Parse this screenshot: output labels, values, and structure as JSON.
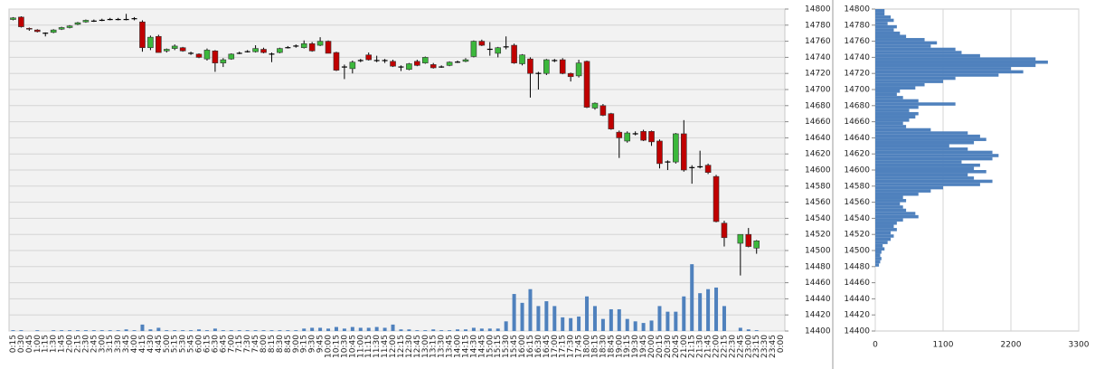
{
  "chart_data": [
    {
      "type": "candlestick",
      "categories": [
        "0:15",
        "0:30",
        "0:45",
        "1:00",
        "1:15",
        "1:30",
        "1:45",
        "2:00",
        "2:15",
        "2:30",
        "2:45",
        "3:00",
        "3:15",
        "3:30",
        "3:45",
        "4:00",
        "4:15",
        "4:30",
        "4:45",
        "5:00",
        "5:15",
        "5:30",
        "5:45",
        "6:00",
        "6:15",
        "6:30",
        "6:45",
        "7:00",
        "7:15",
        "7:30",
        "7:45",
        "8:00",
        "8:15",
        "8:30",
        "8:45",
        "9:00",
        "9:15",
        "9:30",
        "9:45",
        "10:00",
        "10:15",
        "10:30",
        "10:45",
        "11:00",
        "11:15",
        "11:30",
        "11:45",
        "12:00",
        "12:15",
        "12:30",
        "12:45",
        "13:00",
        "13:15",
        "13:30",
        "13:45",
        "14:00",
        "14:15",
        "14:30",
        "14:45",
        "15:00",
        "15:15",
        "15:30",
        "15:45",
        "16:00",
        "16:15",
        "16:30",
        "16:45",
        "17:00",
        "17:15",
        "17:30",
        "17:45",
        "18:00",
        "18:15",
        "18:30",
        "18:45",
        "19:00",
        "19:15",
        "19:30",
        "19:45",
        "20:00",
        "20:15",
        "20:30",
        "20:45",
        "21:00",
        "21:15",
        "21:30",
        "21:45",
        "22:00",
        "22:15",
        "22:30",
        "22:45",
        "23:00",
        "23:15",
        "23:30",
        "23:45",
        "0:00"
      ],
      "open": [
        14787,
        14790,
        14776,
        14774,
        14770,
        14771,
        14775,
        14777,
        14781,
        14784,
        14785,
        14786,
        14787,
        14787,
        14787,
        14788,
        14784,
        14752,
        14766,
        14748,
        14751,
        14752,
        14745,
        14744,
        14738,
        14748,
        14733,
        14738,
        14745,
        14747,
        14747,
        14750,
        14744,
        14746,
        14752,
        14754,
        14752,
        14757,
        14755,
        14760,
        14746,
        14728,
        14726,
        14736,
        14743,
        14736,
        14736,
        14735,
        14728,
        14725,
        14735,
        14733,
        14731,
        14728,
        14730,
        14734,
        14735,
        14741,
        14760,
        14750,
        14745,
        14753,
        14755,
        14732,
        14738,
        14720,
        14720,
        14736,
        14737,
        14720,
        14717,
        14735,
        14677,
        14680,
        14670,
        14647,
        14636,
        14645,
        14648,
        14648,
        14636,
        14610,
        14610,
        14645,
        14603,
        14604,
        14606,
        14592,
        14534,
        null,
        14509,
        14520,
        14503,
        null,
        null,
        null
      ],
      "high": [
        14790,
        14791,
        14777,
        14775,
        14771,
        14775,
        14778,
        14780,
        14784,
        14787,
        14787,
        14788,
        14789,
        14789,
        14794,
        14790,
        14786,
        14767,
        14768,
        14751,
        14756,
        14753,
        14747,
        14745,
        14751,
        14749,
        14739,
        14745,
        14747,
        14749,
        14755,
        14752,
        14746,
        14752,
        14754,
        14756,
        14761,
        14759,
        14765,
        14761,
        14747,
        14731,
        14736,
        14738,
        14746,
        14742,
        14738,
        14737,
        14730,
        14733,
        14737,
        14741,
        14733,
        14730,
        14735,
        14736,
        14739,
        14761,
        14762,
        14759,
        14753,
        14766,
        14757,
        14744,
        14740,
        14722,
        14738,
        14738,
        14739,
        14721,
        14737,
        14736,
        14684,
        14682,
        14671,
        14649,
        14648,
        14648,
        14650,
        14649,
        14638,
        14612,
        14646,
        14662,
        14606,
        14624,
        14608,
        14594,
        14537,
        null,
        14520,
        14528,
        14513,
        null,
        null,
        null
      ],
      "low": [
        14786,
        14777,
        14773,
        14771,
        14766,
        14770,
        14774,
        14776,
        14780,
        14783,
        14784,
        14785,
        14786,
        14786,
        14786,
        14786,
        14747,
        14749,
        14746,
        14746,
        14749,
        14747,
        14743,
        14739,
        14736,
        14722,
        14728,
        14737,
        14744,
        14746,
        14746,
        14745,
        14734,
        14745,
        14751,
        14752,
        14751,
        14747,
        14754,
        14745,
        14723,
        14713,
        14720,
        14734,
        14736,
        14734,
        14733,
        14728,
        14723,
        14724,
        14729,
        14732,
        14726,
        14727,
        14729,
        14733,
        14734,
        14740,
        14754,
        14742,
        14740,
        14750,
        14732,
        14730,
        14690,
        14700,
        14718,
        14734,
        14719,
        14710,
        14715,
        14677,
        14675,
        14667,
        14650,
        14615,
        14634,
        14643,
        14636,
        14630,
        14602,
        14600,
        14608,
        14598,
        14583,
        14602,
        14595,
        14535,
        14505,
        null,
        14469,
        14504,
        14496,
        null,
        null,
        null
      ],
      "close": [
        14789,
        14778,
        14775,
        14772,
        14770,
        14774,
        14777,
        14779,
        14783,
        14786,
        14785,
        14786,
        14787,
        14787,
        14787,
        14788,
        14752,
        14765,
        14746,
        14750,
        14754,
        14748,
        14745,
        14740,
        14749,
        14733,
        14737,
        14744,
        14745,
        14747,
        14751,
        14746,
        14744,
        14751,
        14752,
        14754,
        14757,
        14748,
        14760,
        14745,
        14724,
        14728,
        14734,
        14736,
        14737,
        14736,
        14736,
        14729,
        14728,
        14732,
        14730,
        14740,
        14727,
        14728,
        14734,
        14734,
        14737,
        14760,
        14755,
        14750,
        14752,
        14753,
        14733,
        14743,
        14720,
        14720,
        14737,
        14736,
        14720,
        14716,
        14733,
        14678,
        14683,
        14668,
        14651,
        14640,
        14646,
        14645,
        14637,
        14635,
        14608,
        14610,
        14645,
        14600,
        14603,
        14604,
        14597,
        14536,
        14516,
        null,
        14520,
        14505,
        14512,
        null,
        null,
        null
      ],
      "volume": {
        "axis": "y2",
        "color": "#4f81bd",
        "values": [
          1,
          1,
          0,
          1,
          0,
          1,
          1,
          1,
          1,
          1,
          1,
          1,
          1,
          1,
          2,
          1,
          8,
          2,
          4,
          1,
          1,
          1,
          1,
          2,
          1,
          3,
          1,
          1,
          1,
          1,
          1,
          1,
          1,
          1,
          1,
          1,
          3,
          4,
          4,
          3,
          5,
          3,
          5,
          4,
          4,
          5,
          4,
          8,
          2,
          2,
          1,
          1,
          2,
          1,
          1,
          2,
          2,
          4,
          3,
          3,
          3,
          12,
          46,
          35,
          52,
          31,
          37,
          31,
          17,
          16,
          18,
          43,
          31,
          15,
          27,
          27,
          15,
          12,
          10,
          13,
          31,
          24,
          24,
          43,
          83,
          47,
          52,
          54,
          31,
          null,
          4,
          2,
          1,
          null,
          null,
          null
        ]
      },
      "up_color": "#3cb83c",
      "down_color": "#c00000",
      "ylim": [
        14400,
        14800
      ],
      "yticks": [
        14400,
        14420,
        14440,
        14460,
        14480,
        14500,
        14520,
        14540,
        14560,
        14580,
        14600,
        14620,
        14640,
        14660,
        14680,
        14700,
        14720,
        14740,
        14760,
        14780,
        14800
      ],
      "y2lim": [
        0,
        400
      ],
      "grid": true
    },
    {
      "type": "histogram",
      "orientation": "horizontal",
      "color": "#4f81bd",
      "bins": [
        14480,
        14484,
        14488,
        14492,
        14496,
        14500,
        14504,
        14508,
        14512,
        14516,
        14520,
        14524,
        14528,
        14532,
        14536,
        14540,
        14544,
        14548,
        14552,
        14556,
        14560,
        14564,
        14568,
        14572,
        14576,
        14580,
        14584,
        14588,
        14592,
        14596,
        14600,
        14604,
        14608,
        14612,
        14616,
        14620,
        14624,
        14628,
        14632,
        14636,
        14640,
        14644,
        14648,
        14652,
        14656,
        14660,
        14664,
        14668,
        14672,
        14676,
        14680,
        14684,
        14688,
        14692,
        14696,
        14700,
        14704,
        14708,
        14712,
        14716,
        14720,
        14724,
        14728,
        14732,
        14736,
        14740,
        14744,
        14748,
        14752,
        14756,
        14760,
        14764,
        14768,
        14772,
        14776,
        14780,
        14784,
        14788,
        14792,
        14796,
        14800
      ],
      "values": [
        60,
        80,
        100,
        80,
        100,
        150,
        120,
        200,
        250,
        300,
        250,
        350,
        300,
        350,
        450,
        700,
        650,
        500,
        450,
        400,
        500,
        450,
        700,
        900,
        1100,
        1700,
        1900,
        1600,
        1500,
        1800,
        1600,
        1700,
        1400,
        1900,
        2000,
        1900,
        1500,
        1200,
        1600,
        1800,
        1700,
        1500,
        900,
        500,
        450,
        550,
        650,
        700,
        550,
        700,
        1300,
        700,
        450,
        350,
        400,
        650,
        800,
        1100,
        1300,
        2000,
        2400,
        2200,
        2600,
        2800,
        2600,
        1700,
        1400,
        1300,
        900,
        1000,
        800,
        500,
        400,
        300,
        350,
        200,
        300,
        250,
        150,
        150
      ],
      "xlim": [
        0,
        3300
      ],
      "xticks": [
        0,
        1100,
        2200,
        3300
      ],
      "ylim": [
        14400,
        14800
      ],
      "yticks": [
        14400,
        14420,
        14440,
        14460,
        14480,
        14500,
        14520,
        14540,
        14560,
        14580,
        14600,
        14620,
        14640,
        14660,
        14680,
        14700,
        14720,
        14740,
        14760,
        14780,
        14800
      ],
      "grid": true
    }
  ]
}
